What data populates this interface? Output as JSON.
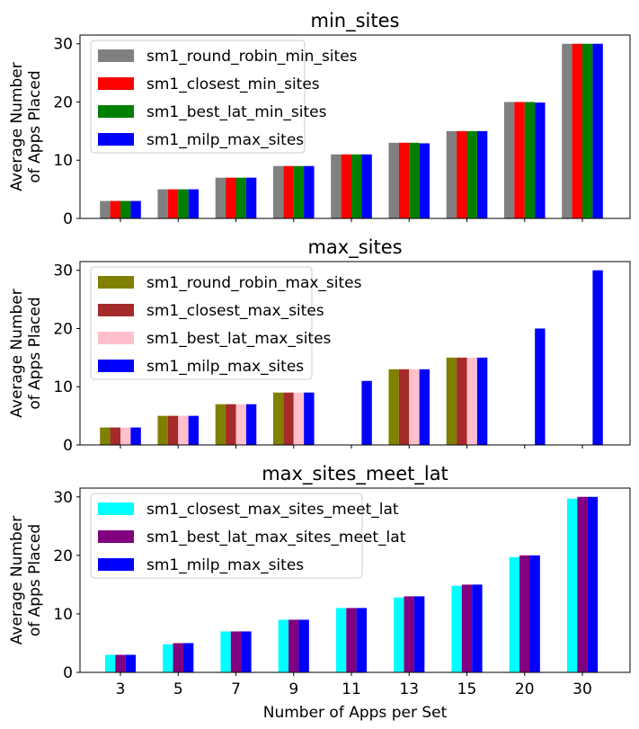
{
  "chart_data": [
    {
      "type": "bar",
      "title": "min_sites",
      "ylabel": [
        "Average Number",
        "of Apps Placed"
      ],
      "xlabel": "",
      "categories": [
        "3",
        "5",
        "7",
        "9",
        "11",
        "13",
        "15",
        "20",
        "30"
      ],
      "ylim": [
        0,
        31.5
      ],
      "yticks": [
        0,
        10,
        20,
        30
      ],
      "show_xticklabels": false,
      "legend_position": "upper-left",
      "series": [
        {
          "name": "sm1_round_robin_min_sites",
          "color": "#808080",
          "values": [
            3,
            5,
            7,
            9,
            11,
            13,
            15,
            20,
            30
          ]
        },
        {
          "name": "sm1_closest_min_sites",
          "color": "#ff0000",
          "values": [
            3,
            5,
            7,
            9,
            11,
            13,
            15,
            20,
            30
          ]
        },
        {
          "name": "sm1_best_lat_min_sites",
          "color": "#008000",
          "values": [
            3,
            5,
            7,
            9,
            11,
            13,
            15,
            20,
            30
          ]
        },
        {
          "name": "sm1_milp_max_sites",
          "color": "#0000ff",
          "values": [
            3,
            5,
            7,
            9,
            11,
            12.9,
            15,
            19.9,
            30
          ]
        }
      ]
    },
    {
      "type": "bar",
      "title": "max_sites",
      "ylabel": [
        "Average Number",
        "of Apps Placed"
      ],
      "xlabel": "",
      "categories": [
        "3",
        "5",
        "7",
        "9",
        "11",
        "13",
        "15",
        "20",
        "30"
      ],
      "ylim": [
        0,
        31.5
      ],
      "yticks": [
        0,
        10,
        20,
        30
      ],
      "show_xticklabels": false,
      "legend_position": "upper-left",
      "series": [
        {
          "name": "sm1_round_robin_max_sites",
          "color": "#808000",
          "values": [
            3,
            5,
            7,
            9,
            0,
            13,
            15,
            0,
            0
          ]
        },
        {
          "name": "sm1_closest_max_sites",
          "color": "#a52a2a",
          "values": [
            3,
            5,
            7,
            9,
            0,
            13,
            15,
            0,
            0
          ]
        },
        {
          "name": "sm1_best_lat_max_sites",
          "color": "#ffc0cb",
          "values": [
            3,
            5,
            7,
            9,
            0,
            13,
            15,
            0,
            0
          ]
        },
        {
          "name": "sm1_milp_max_sites",
          "color": "#0000ff",
          "values": [
            3,
            5,
            7,
            9,
            11,
            13,
            15,
            20,
            30
          ]
        }
      ]
    },
    {
      "type": "bar",
      "title": "max_sites_meet_lat",
      "ylabel": [
        "Average Number",
        "of Apps Placed"
      ],
      "xlabel": "Number of Apps per Set",
      "categories": [
        "3",
        "5",
        "7",
        "9",
        "11",
        "13",
        "15",
        "20",
        "30"
      ],
      "ylim": [
        0,
        31.5
      ],
      "yticks": [
        0,
        10,
        20,
        30
      ],
      "show_xticklabels": true,
      "legend_position": "upper-left",
      "series": [
        {
          "name": "sm1_closest_max_sites_meet_lat",
          "color": "#00ffff",
          "values": [
            3,
            4.8,
            7,
            9,
            11,
            12.8,
            14.8,
            19.7,
            29.7
          ]
        },
        {
          "name": "sm1_best_lat_max_sites_meet_lat",
          "color": "#800080",
          "values": [
            3,
            5,
            7,
            9,
            11,
            13,
            15,
            20,
            30
          ]
        },
        {
          "name": "sm1_milp_max_sites",
          "color": "#0000ff",
          "values": [
            3,
            5,
            7,
            9,
            11,
            13,
            15,
            20,
            30
          ]
        }
      ]
    }
  ]
}
